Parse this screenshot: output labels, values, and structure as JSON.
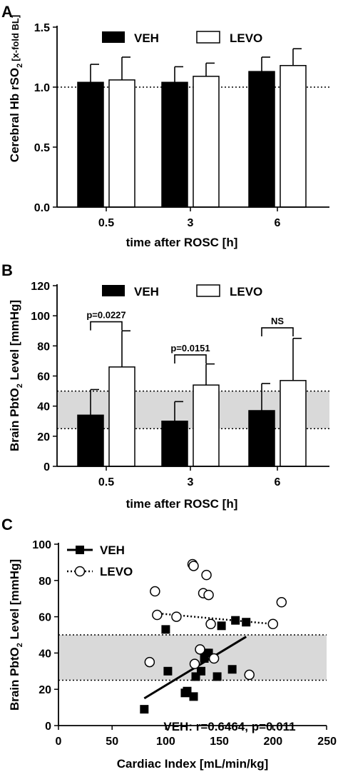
{
  "colors": {
    "veh": "#000000",
    "levo": "#ffffff",
    "band": "#d9d9d9",
    "axis": "#000000"
  },
  "panels": [
    {
      "letter": "A",
      "chart_data": {
        "type": "bar",
        "xlabel": "time after ROSC [h]",
        "ylabel_main": "Cerebral Hb rSO",
        "ylabel_sub": "2",
        "ylabel_unit": "[x-fold BL]",
        "categories": [
          "0.5",
          "3",
          "6"
        ],
        "ylim": [
          0,
          1.5
        ],
        "yticks": [
          0.0,
          0.5,
          1.0,
          1.5
        ],
        "ytick_labels": [
          "0.0",
          "0.5",
          "1.0",
          "1.5"
        ],
        "reference_line": 1.0,
        "legend": [
          "VEH",
          "LEVO"
        ],
        "series": [
          {
            "name": "VEH",
            "values": [
              1.04,
              1.04,
              1.13
            ],
            "errors": [
              0.15,
              0.13,
              0.12
            ]
          },
          {
            "name": "LEVO",
            "values": [
              1.06,
              1.09,
              1.18
            ],
            "errors": [
              0.19,
              0.11,
              0.14
            ]
          }
        ]
      }
    },
    {
      "letter": "B",
      "chart_data": {
        "type": "bar",
        "xlabel": "time after ROSC [h]",
        "ylabel_main": "Brain PbtO",
        "ylabel_sub": "2",
        "ylabel_unit": " Level [mmHg]",
        "categories": [
          "0.5",
          "3",
          "6"
        ],
        "ylim": [
          0,
          120
        ],
        "yticks": [
          0,
          20,
          40,
          60,
          80,
          100,
          120
        ],
        "ytick_labels": [
          "0",
          "20",
          "40",
          "60",
          "80",
          "100",
          "120"
        ],
        "band": [
          25,
          50
        ],
        "legend": [
          "VEH",
          "LEVO"
        ],
        "series": [
          {
            "name": "VEH",
            "values": [
              34,
              30,
              37
            ],
            "errors": [
              17,
              13,
              18
            ]
          },
          {
            "name": "LEVO",
            "values": [
              66,
              54,
              57
            ],
            "errors": [
              24,
              14,
              28
            ]
          }
        ],
        "annotations": [
          "p=0.0227",
          "p=0.0151",
          "NS"
        ]
      }
    },
    {
      "letter": "C",
      "chart_data": {
        "type": "scatter",
        "xlabel": "Cardiac Index [mL/min/kg]",
        "ylabel_main": "Brain PbtO",
        "ylabel_sub": "2",
        "ylabel_unit": " Level [mmHg]",
        "xlim": [
          0,
          250
        ],
        "ylim": [
          0,
          100
        ],
        "xticks": [
          0,
          50,
          100,
          150,
          200,
          250
        ],
        "xtick_labels": [
          "0",
          "50",
          "100",
          "150",
          "200",
          "250"
        ],
        "yticks": [
          0,
          20,
          40,
          60,
          80,
          100
        ],
        "ytick_labels": [
          "0",
          "20",
          "40",
          "60",
          "80",
          "100"
        ],
        "band": [
          25,
          50
        ],
        "series": [
          {
            "name": "VEH",
            "x": [
              80,
              100,
              102,
              118,
              120,
              126,
              128,
              133,
              136,
              138,
              140,
              148,
              152,
              162,
              165,
              175
            ],
            "y": [
              9,
              53,
              30,
              18,
              19,
              16,
              27,
              30,
              37,
              40,
              40,
              27,
              55,
              31,
              58,
              57
            ],
            "fit": [
              [
                80,
                15
              ],
              [
                175,
                49
              ]
            ]
          },
          {
            "name": "LEVO",
            "x": [
              85,
              90,
              92,
              110,
              125,
              126,
              127,
              132,
              135,
              138,
              140,
              142,
              145,
              178,
              200,
              208
            ],
            "y": [
              35,
              74,
              61,
              60,
              89,
              88,
              34,
              42,
              73,
              83,
              72,
              56,
              37,
              28,
              56,
              68
            ],
            "fit": [
              [
                90,
                62
              ],
              [
                200,
                56
              ]
            ]
          }
        ],
        "annotation": "VEH: r=0.6464, p=0.011"
      }
    }
  ]
}
